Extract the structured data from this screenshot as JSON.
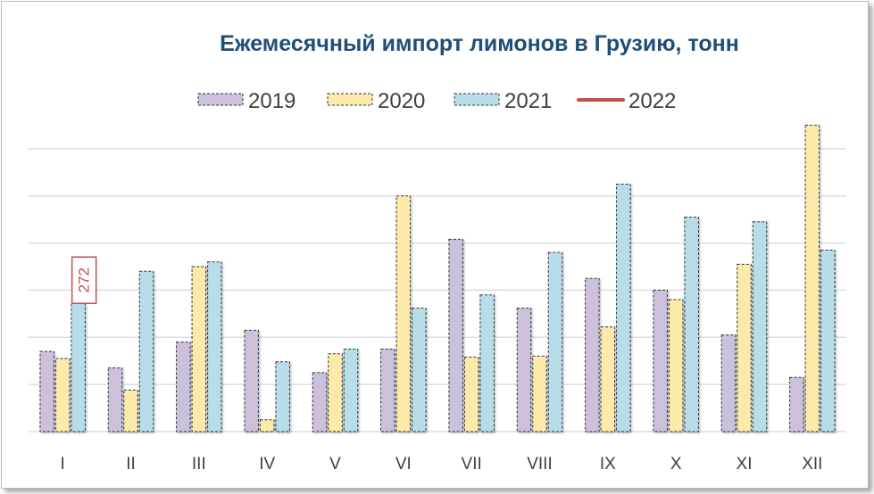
{
  "chart_data": {
    "type": "bar",
    "title": "Ежемесячный импорт лимонов в Грузию, тонн",
    "categories": [
      "I",
      "II",
      "III",
      "IV",
      "V",
      "VI",
      "VII",
      "VIII",
      "IX",
      "X",
      "XI",
      "XII"
    ],
    "series": [
      {
        "name": "2019",
        "color": "#ccc0da",
        "values": [
          170,
          135,
          190,
          215,
          125,
          175,
          408,
          262,
          325,
          300,
          205,
          115
        ]
      },
      {
        "name": "2020",
        "color": "#fde9a9",
        "values": [
          155,
          88,
          350,
          25,
          165,
          500,
          158,
          160,
          222,
          280,
          355,
          650
        ]
      },
      {
        "name": "2021",
        "color": "#b7dde8",
        "values": [
          272,
          340,
          360,
          148,
          175,
          262,
          290,
          380,
          525,
          455,
          445,
          385
        ]
      }
    ],
    "line_series": [
      {
        "name": "2022",
        "color": "#c0504d",
        "values": []
      }
    ],
    "data_labels": [
      {
        "series": "2022",
        "category": "I",
        "text": "272",
        "value": 272
      }
    ],
    "ylim": [
      0,
      700
    ],
    "y_gridlines": [
      0,
      100,
      200,
      300,
      400,
      500,
      600
    ],
    "y_tick_labels_visible": false,
    "grid": true,
    "legend_position": "top"
  }
}
